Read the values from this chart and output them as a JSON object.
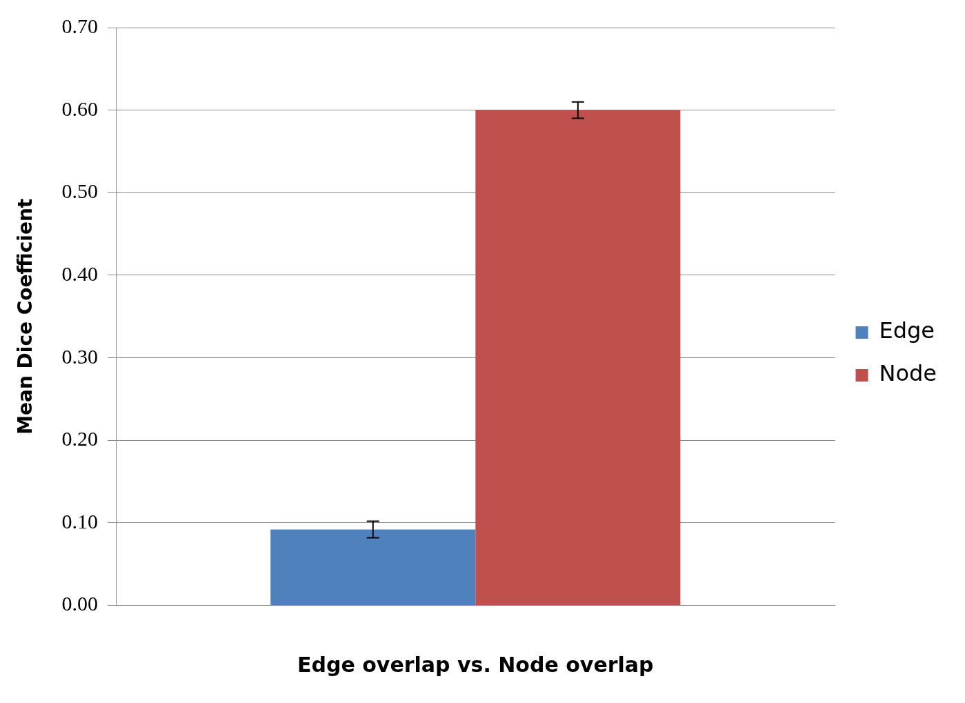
{
  "chart_data": {
    "type": "bar",
    "xlabel": "Edge overlap vs. Node overlap",
    "ylabel": "Mean Dice Coefficient",
    "categories": [
      null
    ],
    "series": [
      {
        "name": "Edge",
        "color": "#4f81bd",
        "values": [
          0.092
        ],
        "errors": [
          0.01
        ]
      },
      {
        "name": "Node",
        "color": "#c0504d",
        "values": [
          0.6
        ],
        "errors": [
          0.01
        ]
      }
    ],
    "ylim": [
      0,
      0.7
    ],
    "yticks": [
      {
        "value": 0,
        "label": "0.00"
      },
      {
        "value": 0.1,
        "label": "0.10"
      },
      {
        "value": 0.2,
        "label": "0.20"
      },
      {
        "value": 0.3,
        "label": "0.30"
      },
      {
        "value": 0.4,
        "label": "0.40"
      },
      {
        "value": 0.5,
        "label": "0.50"
      },
      {
        "value": 0.6,
        "label": "0.60"
      },
      {
        "value": 0.7,
        "label": "0.70"
      }
    ],
    "grid": "y",
    "legend": "right"
  }
}
